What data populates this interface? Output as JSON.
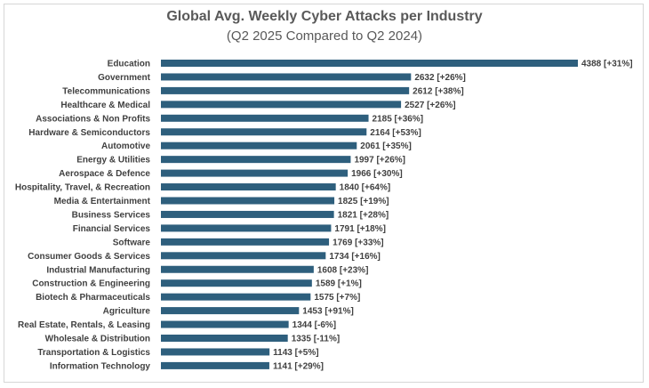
{
  "chart_data": {
    "type": "bar",
    "orientation": "horizontal",
    "title": "Global Avg. Weekly Cyber Attacks per Industry",
    "subtitle": "(Q2 2025 Compared to Q2 2024)",
    "xlabel": "",
    "ylabel": "",
    "grid": false,
    "legend": "none",
    "bar_color": "#2e5f7d",
    "categories": [
      "Education",
      "Government",
      "Telecommunications",
      "Healthcare & Medical",
      "Associations & Non Profits",
      "Hardware & Semiconductors",
      "Automotive",
      "Energy & Utilities",
      "Aerospace & Defence",
      "Hospitality, Travel, & Recreation",
      "Media & Entertainment",
      "Business Services",
      "Financial Services",
      "Software",
      "Consumer Goods & Services",
      "Industrial Manufacturing",
      "Construction & Engineering",
      "Biotech & Pharmaceuticals",
      "Agriculture",
      "Real Estate, Rentals, & Leasing",
      "Wholesale & Distribution",
      "Transportation & Logistics",
      "Information Technology"
    ],
    "values": [
      4388,
      2632,
      2612,
      2527,
      2185,
      2164,
      2061,
      1997,
      1966,
      1840,
      1825,
      1821,
      1791,
      1769,
      1734,
      1608,
      1589,
      1575,
      1453,
      1344,
      1335,
      1143,
      1141
    ],
    "data_labels": [
      "4388 [+31%]",
      "2632 [+26%]",
      "2612 [+38%]",
      "2527 [+26%]",
      "2185 [+36%]",
      "2164 [+53%]",
      "2061 [+35%]",
      "1997 [+26%]",
      "1966 [+30%]",
      "1840 [+64%]",
      "1825 [+19%]",
      "1821 [+28%]",
      "1791 [+18%]",
      "1769 [+33%]",
      "1734 [+16%]",
      "1608 [+23%]",
      "1589 [+1%]",
      "1575 [+7%]",
      "1453 [+91%]",
      "1344 [-6%]",
      "1335 [-11%]",
      "1143 [+5%]",
      "1141 [+29%]"
    ]
  }
}
